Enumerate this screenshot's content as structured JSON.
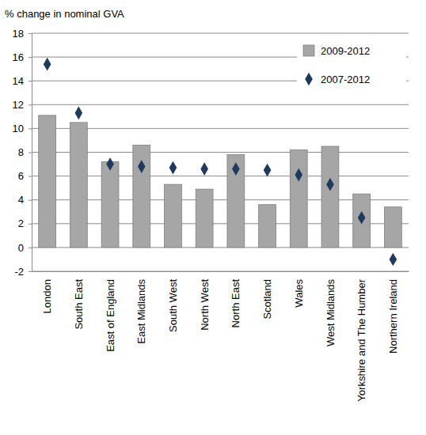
{
  "chart_data": {
    "type": "bar",
    "y_label": "% change in nominal GVA",
    "categories": [
      "London",
      "South East",
      "East of England",
      "East Midlands",
      "South West",
      "North West",
      "North East",
      "Scotland",
      "Wales",
      "West Midlands",
      "Yorkshire and The Humber",
      "Northern Ireland"
    ],
    "series": [
      {
        "name": "2009-2012",
        "type": "bar",
        "color": "#a6a6a6",
        "values": [
          11.1,
          10.5,
          7.2,
          8.6,
          5.3,
          4.9,
          7.8,
          3.6,
          8.2,
          8.5,
          4.5,
          3.4
        ]
      },
      {
        "name": "2007-2012",
        "type": "scatter",
        "marker": "diamond",
        "color": "#1f3a5f",
        "values": [
          15.4,
          11.3,
          7.0,
          6.8,
          6.7,
          6.6,
          6.6,
          6.5,
          6.1,
          5.3,
          2.5,
          -1.0
        ]
      }
    ],
    "ylim": [
      -2,
      18
    ],
    "yticks": [
      -2,
      0,
      2,
      4,
      6,
      8,
      10,
      12,
      14,
      16,
      18
    ],
    "grid": true,
    "legend": "upper right"
  }
}
